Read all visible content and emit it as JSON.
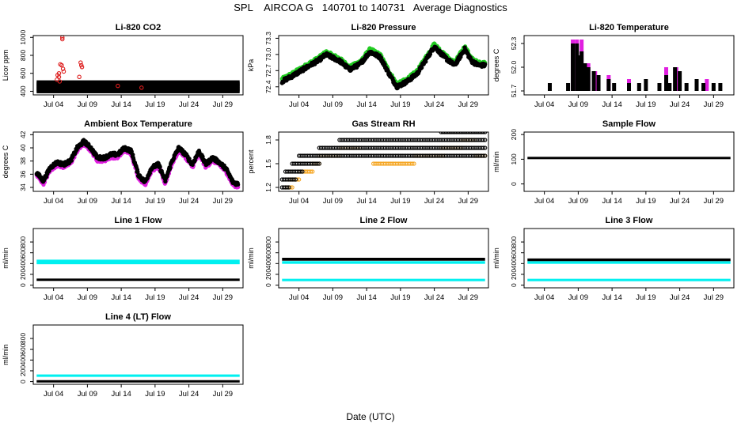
{
  "figure": {
    "title": "SPL    AIRCOA G   140701 to 140731   Average Diagnostics",
    "xlabel": "Date (UTC)",
    "colors": {
      "black": "#000000",
      "red": "#dd1c1c",
      "green": "#22cc22",
      "magenta": "#e01fe0",
      "orange": "#f5a623",
      "cyan": "#00f0f0"
    }
  },
  "chart_data": [
    {
      "id": "li820-co2",
      "type": "scatter",
      "title": "Li-820 CO2",
      "ylabel": "Licor ppm",
      "xlim": [
        0,
        31
      ],
      "ylim": [
        360,
        1020
      ],
      "xticks": [
        3,
        8,
        13,
        18,
        23,
        28
      ],
      "xticklabels": [
        "Jul 04",
        "Jul 09",
        "Jul 14",
        "Jul 19",
        "Jul 24",
        "Jul 29"
      ],
      "yticks": [
        400,
        600,
        800,
        1000
      ],
      "yticklabels": [
        "400",
        "600",
        "800",
        "1000"
      ],
      "series": [
        {
          "name": "primary",
          "color": "black",
          "kind": "bands",
          "levels": [
            400,
            420,
            440,
            460,
            480,
            500
          ],
          "x": [
            0.5,
            30.5
          ]
        },
        {
          "name": "secondary",
          "color": "red",
          "kind": "points",
          "points": [
            [
              4.3,
              1000
            ],
            [
              4.3,
              980
            ],
            [
              4.0,
              700
            ],
            [
              4.2,
              690
            ],
            [
              3.8,
              600
            ],
            [
              3.6,
              580
            ],
            [
              3.8,
              560
            ],
            [
              3.5,
              530
            ],
            [
              3.9,
              510
            ],
            [
              4.4,
              650
            ],
            [
              4.5,
              620
            ],
            [
              7.0,
              720
            ],
            [
              7.1,
              690
            ],
            [
              7.2,
              670
            ],
            [
              6.8,
              560
            ],
            [
              12.5,
              460
            ],
            [
              16.0,
              440
            ]
          ]
        }
      ]
    },
    {
      "id": "li820-pressure",
      "type": "scatter",
      "title": "Li-820 Pressure",
      "ylabel": "kPa",
      "xlim": [
        0,
        31
      ],
      "ylim": [
        72.25,
        73.35
      ],
      "xticks": [
        3,
        8,
        13,
        18,
        23,
        28
      ],
      "xticklabels": [
        "Jul 04",
        "Jul 09",
        "Jul 14",
        "Jul 19",
        "Jul 24",
        "Jul 29"
      ],
      "yticks": [
        72.4,
        72.7,
        73.0,
        73.3
      ],
      "yticklabels": [
        "72.4",
        "72.7",
        "73.0",
        "73.3"
      ],
      "series": [
        {
          "name": "secondary",
          "color": "green",
          "kind": "trace",
          "offset": 0.04,
          "x": [
            0.5,
            2,
            4,
            6,
            7,
            9,
            10.5,
            12,
            13.5,
            15,
            16.5,
            17.5,
            19,
            20.5,
            22,
            23,
            24.5,
            26,
            27.5,
            28.5,
            29.5,
            30.5
          ],
          "y": [
            72.5,
            72.6,
            72.75,
            72.9,
            73.0,
            72.88,
            72.72,
            72.82,
            73.05,
            72.95,
            72.6,
            72.4,
            72.5,
            72.65,
            72.95,
            73.15,
            72.95,
            72.8,
            73.1,
            72.88,
            72.8,
            72.8
          ]
        },
        {
          "name": "primary",
          "color": "black",
          "kind": "trace",
          "offset": 0,
          "x": [
            0.5,
            2,
            4,
            6,
            7,
            9,
            10.5,
            12,
            13.5,
            15,
            16.5,
            17.5,
            19,
            20.5,
            22,
            23,
            24.5,
            26,
            27.5,
            28.5,
            29.5,
            30.5
          ],
          "y": [
            72.5,
            72.6,
            72.75,
            72.9,
            73.0,
            72.88,
            72.72,
            72.82,
            73.05,
            72.95,
            72.6,
            72.4,
            72.5,
            72.65,
            72.95,
            73.15,
            72.95,
            72.8,
            73.1,
            72.88,
            72.8,
            72.8
          ]
        }
      ]
    },
    {
      "id": "li820-temperature",
      "type": "scatter",
      "title": "Li-820 Temperature",
      "ylabel": "degrees C",
      "xlim": [
        0,
        31
      ],
      "ylim": [
        51.65,
        52.4
      ],
      "xticks": [
        3,
        8,
        13,
        18,
        23,
        28
      ],
      "xticklabels": [
        "Jul 04",
        "Jul 09",
        "Jul 14",
        "Jul 19",
        "Jul 24",
        "Jul 29"
      ],
      "yticks": [
        51.7,
        52.0,
        52.3
      ],
      "yticklabels": [
        "51.7",
        "52.0",
        "52.3"
      ],
      "series": [
        {
          "name": "secondary",
          "color": "magenta",
          "kind": "bars",
          "base": 51.7,
          "bars": [
            [
              7.2,
              52.35
            ],
            [
              7.8,
              52.35
            ],
            [
              8.5,
              52.35
            ],
            [
              9.5,
              52.05
            ],
            [
              10.5,
              51.95
            ],
            [
              12.5,
              51.9
            ],
            [
              15.5,
              51.85
            ],
            [
              21.0,
              52.0
            ],
            [
              22.5,
              52.0
            ],
            [
              27.0,
              51.85
            ]
          ]
        },
        {
          "name": "primary",
          "color": "black",
          "kind": "bars",
          "base": 51.7,
          "bars": [
            [
              3.8,
              51.8
            ],
            [
              6.5,
              51.8
            ],
            [
              7.2,
              52.3
            ],
            [
              7.8,
              52.3
            ],
            [
              8.0,
              52.15
            ],
            [
              8.5,
              52.2
            ],
            [
              9.0,
              52.05
            ],
            [
              9.5,
              52.0
            ],
            [
              10.3,
              51.95
            ],
            [
              11.0,
              51.9
            ],
            [
              12.5,
              51.85
            ],
            [
              13.3,
              51.8
            ],
            [
              15.5,
              51.8
            ],
            [
              17.0,
              51.8
            ],
            [
              18.0,
              51.85
            ],
            [
              20.0,
              51.8
            ],
            [
              21.0,
              51.9
            ],
            [
              21.5,
              51.8
            ],
            [
              22.3,
              52.0
            ],
            [
              23.0,
              51.95
            ],
            [
              24.0,
              51.8
            ],
            [
              25.5,
              51.85
            ],
            [
              26.5,
              51.8
            ],
            [
              28.0,
              51.8
            ],
            [
              29.0,
              51.8
            ]
          ]
        }
      ]
    },
    {
      "id": "ambient-box-temperature",
      "type": "scatter",
      "title": "Ambient Box Temperature",
      "ylabel": "degrees C",
      "xlim": [
        0,
        31
      ],
      "ylim": [
        33.4,
        42.4
      ],
      "xticks": [
        3,
        8,
        13,
        18,
        23,
        28
      ],
      "xticklabels": [
        "Jul 04",
        "Jul 09",
        "Jul 14",
        "Jul 19",
        "Jul 24",
        "Jul 29"
      ],
      "yticks": [
        34,
        36,
        38,
        40,
        42
      ],
      "yticklabels": [
        "34",
        "36",
        "38",
        "40",
        "42"
      ],
      "series": [
        {
          "name": "secondary",
          "color": "magenta",
          "kind": "trace",
          "offset": -0.35,
          "x": [
            0.5,
            1.5,
            2.5,
            3.5,
            4.5,
            5.5,
            6.5,
            7.5,
            8.5,
            9.5,
            10.5,
            11.5,
            12.5,
            13.5,
            14.5,
            15.5,
            16.5,
            17.5,
            18.5,
            19.5,
            20.5,
            21.5,
            22.5,
            23.5,
            24.5,
            25.5,
            26.5,
            27.5,
            28.5,
            29.5,
            30.3
          ],
          "y": [
            36.2,
            35.0,
            37.0,
            37.8,
            37.5,
            38.0,
            40.0,
            41.0,
            40.0,
            38.5,
            38.5,
            39.0,
            39.0,
            40.0,
            39.5,
            36.0,
            34.8,
            37.0,
            37.5,
            35.0,
            38.0,
            40.0,
            39.0,
            37.5,
            39.5,
            37.5,
            38.5,
            37.8,
            36.8,
            34.8,
            34.5
          ]
        },
        {
          "name": "primary",
          "color": "black",
          "kind": "trace",
          "offset": 0,
          "x": [
            0.5,
            1.5,
            2.5,
            3.5,
            4.5,
            5.5,
            6.5,
            7.5,
            8.5,
            9.5,
            10.5,
            11.5,
            12.5,
            13.5,
            14.5,
            15.5,
            16.5,
            17.5,
            18.5,
            19.5,
            20.5,
            21.5,
            22.5,
            23.5,
            24.5,
            25.5,
            26.5,
            27.5,
            28.5,
            29.5,
            30.3
          ],
          "y": [
            36.2,
            35.0,
            37.0,
            37.8,
            37.5,
            38.0,
            40.0,
            41.0,
            40.0,
            38.5,
            38.5,
            39.0,
            39.0,
            40.0,
            39.5,
            36.0,
            34.8,
            37.0,
            37.5,
            35.0,
            38.0,
            40.0,
            39.0,
            37.5,
            39.5,
            37.5,
            38.5,
            37.8,
            36.8,
            34.8,
            34.5
          ]
        }
      ]
    },
    {
      "id": "gas-stream-rh",
      "type": "scatter",
      "title": "Gas Stream RH",
      "ylabel": "percent",
      "xlim": [
        0,
        31
      ],
      "ylim": [
        1.15,
        1.9
      ],
      "xticks": [
        3,
        8,
        13,
        18,
        23,
        28
      ],
      "xticklabels": [
        "Jul 04",
        "Jul 09",
        "Jul 14",
        "Jul 19",
        "Jul 24",
        "Jul 29"
      ],
      "yticks": [
        1.2,
        1.5,
        1.8
      ],
      "yticklabels": [
        "1.2",
        "1.5",
        "1.8"
      ],
      "series": [
        {
          "name": "secondary",
          "color": "orange",
          "kind": "segments",
          "segs": [
            [
              1.0,
              2.0,
              1.2
            ],
            [
              1.5,
              3.0,
              1.3
            ],
            [
              3.0,
              5.0,
              1.4
            ],
            [
              5.0,
              6.0,
              1.5
            ],
            [
              6.0,
              9.0,
              1.6
            ],
            [
              9.0,
              12.0,
              1.7
            ],
            [
              14.0,
              20.0,
              1.5
            ],
            [
              20.0,
              24.5,
              1.6
            ],
            [
              24.0,
              27.0,
              1.7
            ],
            [
              27.0,
              29.0,
              1.8
            ],
            [
              29.0,
              30.5,
              1.6
            ]
          ]
        },
        {
          "name": "primary",
          "color": "black",
          "kind": "segments",
          "segs": [
            [
              0.5,
              1.5,
              1.2
            ],
            [
              0.5,
              2.5,
              1.3
            ],
            [
              1.0,
              3.5,
              1.4
            ],
            [
              2.0,
              6.0,
              1.5
            ],
            [
              3.0,
              30.5,
              1.6
            ],
            [
              6.0,
              30.5,
              1.7
            ],
            [
              9.0,
              30.5,
              1.8
            ],
            [
              24.0,
              30.5,
              1.9
            ]
          ]
        }
      ]
    },
    {
      "id": "sample-flow",
      "type": "scatter",
      "title": "Sample Flow",
      "ylabel": "ml/min",
      "xlim": [
        0,
        31
      ],
      "ylim": [
        -30,
        210
      ],
      "xticks": [
        3,
        8,
        13,
        18,
        23,
        28
      ],
      "xticklabels": [
        "Jul 04",
        "Jul 09",
        "Jul 14",
        "Jul 19",
        "Jul 24",
        "Jul 29"
      ],
      "yticks": [
        0,
        100,
        200
      ],
      "yticklabels": [
        "0",
        "100",
        "200"
      ],
      "series": [
        {
          "name": "primary",
          "color": "black",
          "kind": "band",
          "y": 105,
          "height": 9,
          "x": [
            0.5,
            30.5
          ]
        }
      ]
    },
    {
      "id": "line1-flow",
      "type": "scatter",
      "title": "Line 1 Flow",
      "ylabel": "ml/min",
      "xlim": [
        0,
        31
      ],
      "ylim": [
        -50,
        1050
      ],
      "xticks": [
        3,
        8,
        13,
        18,
        23,
        28
      ],
      "xticklabels": [
        "Jul 04",
        "Jul 09",
        "Jul 14",
        "Jul 19",
        "Jul 24",
        "Jul 29"
      ],
      "yticks": [
        0,
        200,
        400,
        600,
        800
      ],
      "yticklabels": [
        "0",
        "200",
        "400",
        "600",
        "800"
      ],
      "series": [
        {
          "name": "secondary",
          "color": "cyan",
          "kind": "band",
          "y": 430,
          "height": 85,
          "x": [
            0.5,
            30.5
          ]
        },
        {
          "name": "primary",
          "color": "black",
          "kind": "band",
          "y": 100,
          "height": 40,
          "x": [
            0.5,
            30.5
          ]
        }
      ]
    },
    {
      "id": "line2-flow",
      "type": "scatter",
      "title": "Line 2 Flow",
      "ylabel": "ml/min",
      "xlim": [
        0,
        31
      ],
      "ylim": [
        -50,
        1050
      ],
      "xticks": [
        3,
        8,
        13,
        18,
        23,
        28
      ],
      "xticklabels": [
        "Jul 04",
        "Jul 09",
        "Jul 14",
        "Jul 19",
        "Jul 24",
        "Jul 29"
      ],
      "yticks": [
        0,
        200,
        400,
        600,
        800
      ],
      "yticklabels": [
        "0",
        "200",
        "400",
        "600",
        "800"
      ],
      "series": [
        {
          "name": "secondary",
          "color": "cyan",
          "kind": "band",
          "y": 420,
          "height": 50,
          "x": [
            0.5,
            30.5
          ]
        },
        {
          "name": "tertiary",
          "color": "cyan",
          "kind": "band",
          "y": 95,
          "height": 40,
          "x": [
            0.5,
            30.5
          ]
        },
        {
          "name": "primary",
          "color": "black",
          "kind": "band",
          "y": 480,
          "height": 55,
          "x": [
            0.5,
            30.5
          ]
        }
      ]
    },
    {
      "id": "line3-flow",
      "type": "scatter",
      "title": "Line 3 Flow",
      "ylabel": "ml/min",
      "xlim": [
        0,
        31
      ],
      "ylim": [
        -50,
        1050
      ],
      "xticks": [
        3,
        8,
        13,
        18,
        23,
        28
      ],
      "xticklabels": [
        "Jul 04",
        "Jul 09",
        "Jul 14",
        "Jul 19",
        "Jul 24",
        "Jul 29"
      ],
      "yticks": [
        0,
        200,
        400,
        600,
        800
      ],
      "yticklabels": [
        "0",
        "200",
        "400",
        "600",
        "800"
      ],
      "series": [
        {
          "name": "secondary",
          "color": "cyan",
          "kind": "band",
          "y": 420,
          "height": 50,
          "x": [
            0.5,
            30.5
          ]
        },
        {
          "name": "tertiary",
          "color": "cyan",
          "kind": "band",
          "y": 95,
          "height": 40,
          "x": [
            0.5,
            30.5
          ]
        },
        {
          "name": "primary",
          "color": "black",
          "kind": "band",
          "y": 470,
          "height": 50,
          "x": [
            0.5,
            30.5
          ]
        }
      ]
    },
    {
      "id": "line4-flow",
      "type": "scatter",
      "title": "Line 4 (LT) Flow",
      "ylabel": "ml/min",
      "xlim": [
        0,
        31
      ],
      "ylim": [
        -50,
        1050
      ],
      "xticks": [
        3,
        8,
        13,
        18,
        23,
        28
      ],
      "xticklabels": [
        "Jul 04",
        "Jul 09",
        "Jul 14",
        "Jul 19",
        "Jul 24",
        "Jul 29"
      ],
      "yticks": [
        0,
        200,
        400,
        600,
        800
      ],
      "yticklabels": [
        "0",
        "200",
        "400",
        "600",
        "800"
      ],
      "series": [
        {
          "name": "secondary",
          "color": "cyan",
          "kind": "band",
          "y": 110,
          "height": 45,
          "x": [
            0.5,
            30.5
          ]
        },
        {
          "name": "primary",
          "color": "black",
          "kind": "band",
          "y": 5,
          "height": 30,
          "x": [
            0.5,
            30.5
          ]
        }
      ]
    }
  ]
}
